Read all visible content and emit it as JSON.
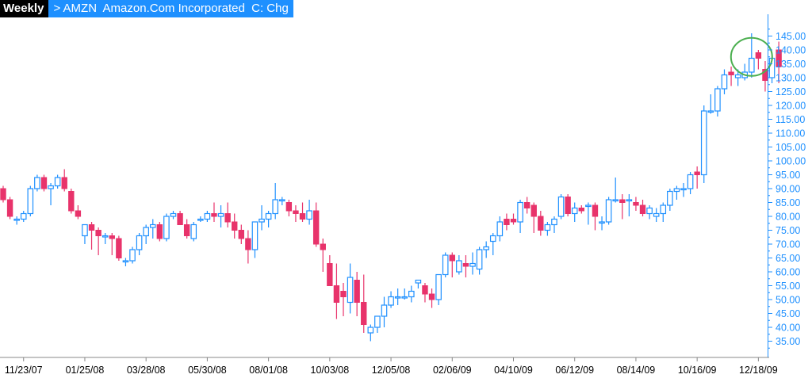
{
  "header": {
    "period": "Weekly",
    "symbol_line": "> AMZN  Amazon.Com Incorporated  C: Chg"
  },
  "colors": {
    "up": "#1e90ff",
    "down": "#e8336b",
    "axis": "#1e90ff",
    "xlabels": "#000000",
    "highlight": "#4caf50"
  },
  "chart_data": {
    "type": "candlestick",
    "title": "",
    "xlabel": "",
    "ylabel": "",
    "ylim": [
      31,
      150
    ],
    "y_ticks": [
      35,
      40,
      45,
      50,
      55,
      60,
      65,
      70,
      75,
      80,
      85,
      90,
      95,
      100,
      105,
      110,
      115,
      120,
      125,
      130,
      135,
      140,
      145
    ],
    "y_tick_labels": [
      "35.00",
      "40.00",
      "45.00",
      "50.00",
      "55.00",
      "60.00",
      "65.00",
      "70.00",
      "75.00",
      "80.00",
      "85.00",
      "90.00",
      "95.00",
      "100.00",
      "105.00",
      "110.00",
      "115.00",
      "120.00",
      "125.00",
      "130.00",
      "135.00",
      "140.00",
      "145.00"
    ],
    "x_labels": [
      "11/23/07",
      "01/25/08",
      "03/28/08",
      "05/30/08",
      "08/01/08",
      "10/03/08",
      "12/05/08",
      "02/06/09",
      "04/10/09",
      "06/12/09",
      "08/14/09",
      "10/16/09",
      "12/18/09"
    ],
    "x_label_index": [
      3,
      12,
      21,
      30,
      39,
      48,
      57,
      66,
      75,
      84,
      93,
      102,
      111
    ],
    "candles": [
      [
        90,
        91,
        85,
        86
      ],
      [
        86,
        87,
        79,
        80
      ],
      [
        79,
        80,
        77,
        79
      ],
      [
        79,
        82,
        78,
        81
      ],
      [
        81,
        91,
        80,
        90
      ],
      [
        90,
        95,
        89,
        94
      ],
      [
        94,
        95,
        89,
        90
      ],
      [
        90,
        92,
        84,
        91
      ],
      [
        91,
        95,
        90,
        94
      ],
      [
        94,
        97,
        89,
        90
      ],
      [
        89,
        90,
        81,
        82
      ],
      [
        82,
        84,
        79,
        80
      ],
      [
        73,
        76,
        70,
        77
      ],
      [
        77,
        78,
        68,
        75
      ],
      [
        75,
        76,
        66,
        73
      ],
      [
        73,
        74,
        70,
        73
      ],
      [
        73,
        74,
        66,
        72
      ],
      [
        72,
        73,
        64,
        65
      ],
      [
        64,
        65,
        62,
        64
      ],
      [
        64,
        69,
        63,
        68
      ],
      [
        68,
        74,
        66,
        73
      ],
      [
        73,
        77,
        70,
        76
      ],
      [
        76,
        79,
        72,
        77
      ],
      [
        77,
        78,
        71,
        72
      ],
      [
        72,
        81,
        71,
        80
      ],
      [
        80,
        82,
        79,
        81
      ],
      [
        81,
        82,
        78,
        77
      ],
      [
        77,
        79,
        72,
        73
      ],
      [
        72,
        78,
        71,
        77
      ],
      [
        79,
        80,
        78,
        79
      ],
      [
        79,
        82,
        78,
        81
      ],
      [
        81,
        85,
        78,
        80
      ],
      [
        80,
        84,
        76,
        81
      ],
      [
        81,
        85,
        76,
        78
      ],
      [
        78,
        81,
        72,
        75
      ],
      [
        75,
        77,
        70,
        72
      ],
      [
        72,
        75,
        63,
        68
      ],
      [
        68,
        77,
        65,
        78
      ],
      [
        78,
        84,
        75,
        79
      ],
      [
        79,
        82,
        76,
        81
      ],
      [
        81,
        92,
        79,
        86
      ],
      [
        86,
        87,
        84,
        86
      ],
      [
        85,
        86,
        80,
        82
      ],
      [
        82,
        84,
        78,
        81
      ],
      [
        81,
        85,
        78,
        79
      ],
      [
        79,
        86,
        77,
        82
      ],
      [
        82,
        85,
        69,
        70
      ],
      [
        70,
        72,
        60,
        68
      ],
      [
        63,
        66,
        55,
        55
      ],
      [
        55,
        63,
        43,
        49
      ],
      [
        53,
        56,
        44,
        51
      ],
      [
        49,
        63,
        45,
        58
      ],
      [
        57,
        60,
        44,
        49
      ],
      [
        49,
        59,
        38,
        41
      ],
      [
        38,
        41,
        35,
        40
      ],
      [
        40,
        44,
        38,
        44
      ],
      [
        44,
        51,
        40,
        48
      ],
      [
        48,
        53,
        47,
        51
      ],
      [
        51,
        54,
        48,
        51
      ],
      [
        51,
        54,
        50,
        51
      ],
      [
        51,
        55,
        49,
        53
      ],
      [
        56,
        57,
        54,
        57
      ],
      [
        55,
        56,
        49,
        52
      ],
      [
        52,
        54,
        47,
        50
      ],
      [
        50,
        59,
        48,
        59
      ],
      [
        59,
        67,
        58,
        66
      ],
      [
        66,
        67,
        58,
        64
      ],
      [
        60,
        66,
        59,
        64
      ],
      [
        63,
        66,
        58,
        62
      ],
      [
        62,
        67,
        59,
        63
      ],
      [
        61,
        69,
        59,
        68
      ],
      [
        68,
        71,
        65,
        69
      ],
      [
        71,
        74,
        66,
        73
      ],
      [
        73,
        80,
        71,
        78
      ],
      [
        79,
        81,
        75,
        77
      ],
      [
        79,
        81,
        77,
        78
      ],
      [
        78,
        86,
        74,
        85
      ],
      [
        85,
        87,
        81,
        83
      ],
      [
        84,
        85,
        74,
        80
      ],
      [
        80,
        82,
        73,
        75
      ],
      [
        75,
        78,
        73,
        77
      ],
      [
        77,
        80,
        74,
        79
      ],
      [
        80,
        88,
        79,
        87
      ],
      [
        87,
        88,
        80,
        81
      ],
      [
        81,
        85,
        78,
        83
      ],
      [
        83,
        84,
        81,
        82
      ],
      [
        84,
        85,
        77,
        84
      ],
      [
        84,
        85,
        75,
        80
      ],
      [
        78,
        80,
        75,
        78
      ],
      [
        78,
        87,
        77,
        86
      ],
      [
        86,
        94,
        85,
        86
      ],
      [
        86,
        88,
        79,
        85
      ],
      [
        86,
        88,
        80,
        86
      ],
      [
        85,
        87,
        82,
        84
      ],
      [
        84,
        86,
        80,
        81
      ],
      [
        81,
        84,
        79,
        83
      ],
      [
        80,
        83,
        78,
        81
      ],
      [
        81,
        85,
        78,
        84
      ],
      [
        84,
        90,
        82,
        89
      ],
      [
        89,
        91,
        86,
        90
      ],
      [
        90,
        92,
        87,
        90
      ],
      [
        90,
        96,
        88,
        95
      ],
      [
        96,
        98,
        90,
        95
      ],
      [
        95,
        120,
        92,
        118
      ],
      [
        118,
        124,
        117,
        118
      ],
      [
        118,
        127,
        116,
        126
      ],
      [
        126,
        133,
        124,
        131
      ],
      [
        132,
        134,
        127,
        131
      ],
      [
        130,
        133,
        127,
        131
      ],
      [
        130,
        135,
        129,
        132
      ],
      [
        132,
        146,
        130,
        137
      ],
      [
        139,
        140,
        133,
        137
      ],
      [
        133,
        136,
        125,
        129
      ],
      [
        130,
        139,
        128,
        137
      ],
      [
        140,
        143,
        128,
        134
      ]
    ],
    "annotation": {
      "shape": "circle",
      "center_index": 110,
      "center_price": 137.5
    }
  }
}
